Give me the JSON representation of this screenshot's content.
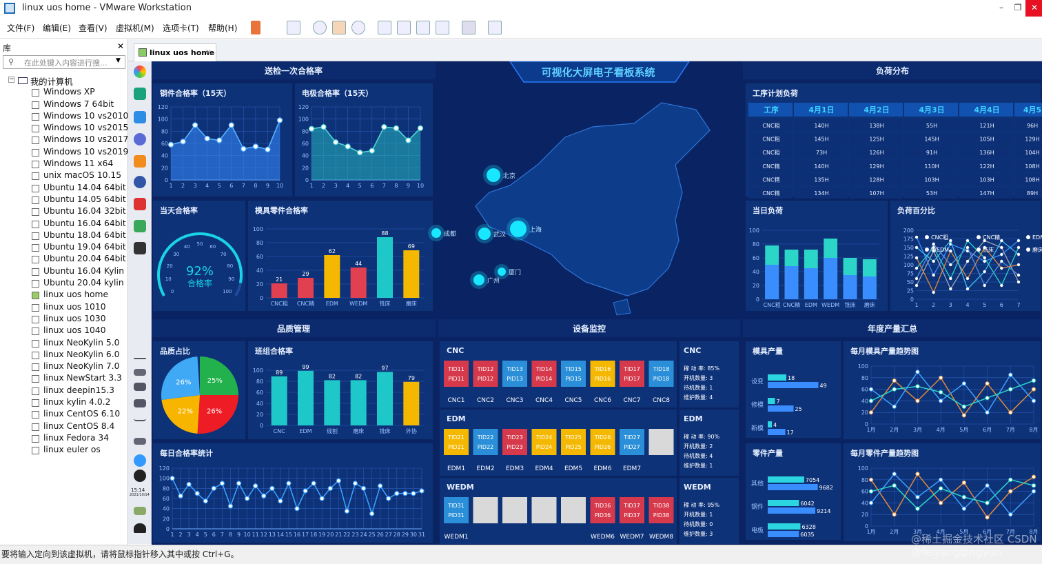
{
  "window": {
    "title": "linux uos home - VMware Workstation",
    "min": "–",
    "max": "❐",
    "close": "✕"
  },
  "menu": [
    "文件(F)",
    "编辑(E)",
    "查看(V)",
    "虚拟机(M)",
    "选项卡(T)",
    "帮助(H)"
  ],
  "library": {
    "title": "库",
    "close": "✕",
    "search_placeholder": "在此处键入内容进行搜...",
    "root": "我的计算机",
    "vms": [
      "Windows XP",
      "Windows 7 64bit",
      "Windows 10 vs2010",
      "Windows 10 vs2015",
      "Windows 10 vs2017",
      "Windows 10 vs2019",
      "Windows 11 x64",
      "unix macOS 10.15",
      "Ubuntu 14.04 64bit",
      "Ubuntu 14.05 64bit",
      "Ubuntu 16.04 32bit",
      "Ubuntu 16.04 64bit",
      "Ubuntu 18.04 64bit",
      "Ubuntu 19.04 64bit",
      "Ubuntu 20.04 64bit",
      "Ubuntu 16.04 Kylin",
      "Ubuntu 20.04 kylin",
      "linux uos home",
      "linux uos 1010",
      "linux uos 1030",
      "linux uos 1040",
      "linux NeoKylin 5.0",
      "linux NeoKylin 6.0",
      "linux NeoKylin 7.0",
      "linux NewStart 3.3",
      "linux deepin15.3",
      "linux kylin 4.0.2",
      "linux CentOS 6.10",
      "linux CentOS 8.4",
      "linux Fedora 34",
      "linux euler os"
    ],
    "selected": "linux uos home"
  },
  "tab": {
    "label": "linux uos home",
    "close": "✕"
  },
  "dock": {
    "time": "15:14",
    "date": "2021/10/14"
  },
  "status": "要将输入定向到该虚拟机，请将鼠标指针移入其中或按 Ctrl+G。",
  "watermark": "@稀土掘金技术社区  CSDN @feiyangqingyun",
  "dashboard": {
    "title": "可视化大屏电子看板系统",
    "sec_pass": "送检一次合格率",
    "sec_load": "负荷分布",
    "sec_quality": "品质管理",
    "sec_device": "设备监控",
    "sec_year": "年度产量汇总",
    "steel": {
      "title": "钢件合格率（15天）",
      "values": [
        58,
        63,
        90,
        68,
        65,
        90,
        51,
        55,
        50,
        98
      ]
    },
    "electrode": {
      "title": "电极合格率（15天）",
      "values": [
        84,
        87,
        62,
        55,
        45,
        48,
        87,
        85,
        65,
        85
      ]
    },
    "today": {
      "title": "当天合格率",
      "value": "92%",
      "label": "合格率",
      "ticks": [
        "0",
        "10",
        "20",
        "30",
        "40",
        "50",
        "60",
        "70",
        "80",
        "90",
        "100"
      ]
    },
    "mold": {
      "title": "模具零件合格率",
      "categories": [
        "CNC粗",
        "CNC精",
        "EDM",
        "WEDM",
        "铣床",
        "磨床"
      ],
      "values": [
        21,
        29,
        62,
        44,
        88,
        69
      ],
      "colors": [
        "#e04050",
        "#e04050",
        "#f5b800",
        "#e04050",
        "#1ec8c8",
        "#f5b800"
      ]
    },
    "map": {
      "cities": [
        {
          "name": "北京",
          "x": 716,
          "y": 165,
          "r": 10
        },
        {
          "name": "成都",
          "x": 633,
          "y": 249,
          "r": 7
        },
        {
          "name": "武汉",
          "x": 703,
          "y": 250,
          "r": 9
        },
        {
          "name": "上海",
          "x": 752,
          "y": 243,
          "r": 12
        },
        {
          "name": "厦门",
          "x": 728,
          "y": 305,
          "r": 6
        },
        {
          "name": "广州",
          "x": 695,
          "y": 317,
          "r": 8
        }
      ]
    },
    "plan": {
      "title": "工序计划负荷",
      "headers": [
        "工序",
        "4月1日",
        "4月2日",
        "4月3日",
        "4月4日",
        "4月5"
      ],
      "rows": [
        [
          "CNC粗",
          "140H",
          "138H",
          "55H",
          "121H",
          "96H"
        ],
        [
          "CNC粗",
          "145H",
          "125H",
          "145H",
          "105H",
          "129H"
        ],
        [
          "CNC粗",
          "73H",
          "126H",
          "91H",
          "136H",
          "104H"
        ],
        [
          "CNC精",
          "140H",
          "129H",
          "110H",
          "122H",
          "108H"
        ],
        [
          "CNC精",
          "135H",
          "128H",
          "103H",
          "103H",
          "108H"
        ],
        [
          "CNC精",
          "134H",
          "107H",
          "53H",
          "147H",
          "89H"
        ]
      ]
    },
    "dayload": {
      "title": "当日负荷",
      "categories": [
        "CNC粗",
        "CNC精",
        "EDM",
        "WEDM",
        "铣床",
        "磨床"
      ],
      "a": [
        78,
        72,
        72,
        88,
        60,
        58
      ],
      "b": [
        50,
        48,
        45,
        60,
        35,
        33
      ]
    },
    "loadpct": {
      "title": "负荷百分比",
      "legend": [
        "CNC粗",
        "CNC精",
        "EDM",
        "WEDM",
        "铣床",
        "磨床"
      ],
      "x": [
        "1",
        "2",
        "3",
        "4",
        "5",
        "6",
        "7"
      ],
      "series": [
        [
          180,
          70,
          160,
          140,
          110,
          130,
          170
        ],
        [
          90,
          150,
          60,
          170,
          120,
          40,
          150
        ],
        [
          40,
          140,
          30,
          110,
          170,
          150,
          50
        ],
        [
          120,
          20,
          140,
          60,
          150,
          90,
          100
        ],
        [
          150,
          110,
          170,
          30,
          80,
          170,
          130
        ],
        [
          60,
          160,
          100,
          150,
          40,
          110,
          70
        ]
      ]
    },
    "qshare": {
      "title": "品质占比",
      "labels": [
        "26%",
        "25%",
        "22%",
        "26%"
      ],
      "colors": [
        "#3fa9f5",
        "#22b14c",
        "#f7b500",
        "#ee1c25"
      ]
    },
    "classpass": {
      "title": "班组合格率",
      "categories": [
        "CNC",
        "EDM",
        "线割",
        "磨床",
        "铣床",
        "外协"
      ],
      "values": [
        89,
        99,
        82,
        82,
        97,
        79
      ],
      "colors": [
        "#1ec8c8",
        "#1ec8c8",
        "#1ec8c8",
        "#1ec8c8",
        "#1ec8c8",
        "#f5b800"
      ]
    },
    "daily": {
      "title": "每日合格率统计",
      "values": [
        100,
        65,
        88,
        70,
        55,
        80,
        90,
        45,
        90,
        60,
        85,
        65,
        80,
        55,
        90,
        40,
        75,
        90,
        60,
        80,
        95,
        35,
        90,
        80,
        30,
        85,
        60,
        70,
        70,
        70,
        75
      ]
    },
    "cnc": {
      "title": "CNC",
      "boxes": [
        [
          "TID11",
          "PID11",
          "#d6394b"
        ],
        [
          "TID12",
          "PID12",
          "#d6394b"
        ],
        [
          "TID13",
          "PID13",
          "#2a8fd8"
        ],
        [
          "TID14",
          "PID14",
          "#d6394b"
        ],
        [
          "TID15",
          "PID15",
          "#2a8fd8"
        ],
        [
          "TID16",
          "PID16",
          "#f5b800"
        ],
        [
          "TID17",
          "PID17",
          "#d6394b"
        ],
        [
          "TID18",
          "PID18",
          "#2a8fd8"
        ]
      ],
      "names": [
        "CNC1",
        "CNC2",
        "CNC3",
        "CNC4",
        "CNC5",
        "CNC6",
        "CNC7",
        "CNC8"
      ],
      "stat": {
        "title": "CNC",
        "lines": [
          "稼 动 率: 85%",
          "开机数量: 3",
          "待机数量: 1",
          "维护数量: 4"
        ]
      }
    },
    "edm": {
      "title": "EDM",
      "boxes": [
        [
          "TID21",
          "PID21",
          "#f5b800"
        ],
        [
          "TID22",
          "PID22",
          "#2a8fd8"
        ],
        [
          "TID23",
          "PID23",
          "#d6394b"
        ],
        [
          "TID24",
          "PID24",
          "#f5b800"
        ],
        [
          "TID25",
          "PID25",
          "#f5b800"
        ],
        [
          "TID26",
          "PID26",
          "#f5b800"
        ],
        [
          "TID27",
          "PID27",
          "#2a8fd8"
        ],
        [
          "",
          "",
          "#d9d9d9"
        ]
      ],
      "names": [
        "EDM1",
        "EDM2",
        "EDM3",
        "EDM4",
        "EDM5",
        "EDM6",
        "EDM7",
        ""
      ],
      "stat": {
        "title": "EDM",
        "lines": [
          "稼 动 率: 90%",
          "开机数量: 2",
          "待机数量: 4",
          "维护数量: 1"
        ]
      }
    },
    "wedm": {
      "title": "WEDM",
      "boxes": [
        [
          "TID31",
          "PID31",
          "#2a8fd8"
        ],
        [
          "",
          "",
          "#d9d9d9"
        ],
        [
          "",
          "",
          "#d9d9d9"
        ],
        [
          "",
          "",
          "#d9d9d9"
        ],
        [
          "",
          "",
          "#d9d9d9"
        ],
        [
          "TID36",
          "PID36",
          "#d6394b"
        ],
        [
          "TID37",
          "PID37",
          "#d6394b"
        ],
        [
          "TID38",
          "PID38",
          "#d6394b"
        ]
      ],
      "names": [
        "WEDM1",
        "",
        "",
        "",
        "",
        "WEDM6",
        "WEDM7",
        "WEDM8"
      ],
      "stat": {
        "title": "WEDM",
        "lines": [
          "稼 动 率: 95%",
          "开机数量: 1",
          "待机数量: 0",
          "维护数量: 3"
        ]
      }
    },
    "moldout": {
      "title": "模具产量",
      "rows": [
        {
          "name": "设变",
          "a": 18,
          "b": 49
        },
        {
          "name": "修模",
          "a": 7,
          "b": 25
        },
        {
          "name": "新模",
          "a": 4,
          "b": 17
        }
      ]
    },
    "moldtrend": {
      "title": "每月模具产量趋势图",
      "x": [
        "1月",
        "2月",
        "3月",
        "4月",
        "5月",
        "6月",
        "7月",
        "8月"
      ],
      "series": [
        [
          20,
          75,
          40,
          80,
          15,
          70,
          20,
          60
        ],
        [
          60,
          30,
          90,
          40,
          70,
          20,
          85,
          40
        ],
        [
          40,
          60,
          65,
          55,
          30,
          45,
          60,
          75
        ]
      ]
    },
    "partout": {
      "title": "零件产量",
      "rows": [
        {
          "name": "其他",
          "a": 7054,
          "b": 9682
        },
        {
          "name": "钢件",
          "a": 6042,
          "b": 9214
        },
        {
          "name": "电极",
          "a": 6328,
          "b": 6035
        }
      ]
    },
    "parttrend": {
      "title": "每月零件产量趋势图",
      "x": [
        "1月",
        "2月",
        "3月",
        "4月",
        "5月",
        "6月",
        "7月",
        "8月"
      ],
      "series": [
        [
          80,
          20,
          90,
          40,
          75,
          15,
          60,
          85
        ],
        [
          40,
          90,
          50,
          80,
          30,
          70,
          20,
          60
        ],
        [
          60,
          70,
          30,
          65,
          50,
          40,
          80,
          70
        ]
      ]
    }
  }
}
